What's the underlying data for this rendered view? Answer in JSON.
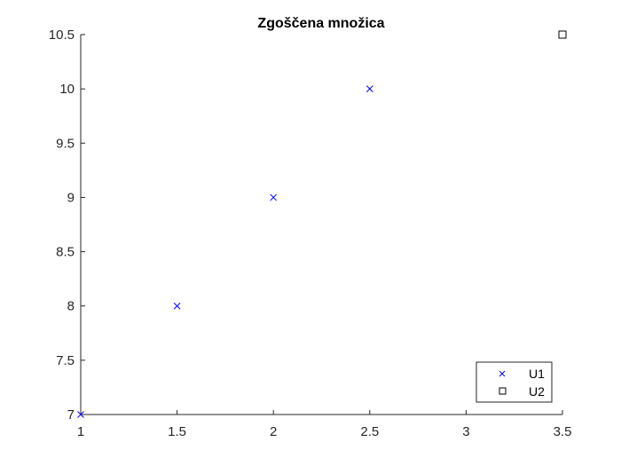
{
  "chart_data": {
    "type": "scatter",
    "title": "Zgoščena množica",
    "xlabel": "",
    "ylabel": "",
    "xlim": [
      1,
      3.5
    ],
    "ylim": [
      7,
      10.5
    ],
    "xticks": [
      1,
      1.5,
      2,
      2.5,
      3,
      3.5
    ],
    "yticks": [
      7,
      7.5,
      8,
      8.5,
      9,
      9.5,
      10,
      10.5
    ],
    "xtick_labels": [
      "1",
      "1.5",
      "2",
      "2.5",
      "3",
      "3.5"
    ],
    "ytick_labels": [
      "7",
      "7.5",
      "8",
      "8.5",
      "9",
      "9.5",
      "10",
      "10.5"
    ],
    "grid": false,
    "legend_position": "bottom-right",
    "series": [
      {
        "name": "U1",
        "marker": "x",
        "color": "#0000ff",
        "x": [
          1,
          1.5,
          2,
          2.5
        ],
        "y": [
          7,
          8,
          9,
          10
        ]
      },
      {
        "name": "U2",
        "marker": "square",
        "color": "#000000",
        "x": [
          3.5
        ],
        "y": [
          10.5
        ]
      }
    ]
  }
}
